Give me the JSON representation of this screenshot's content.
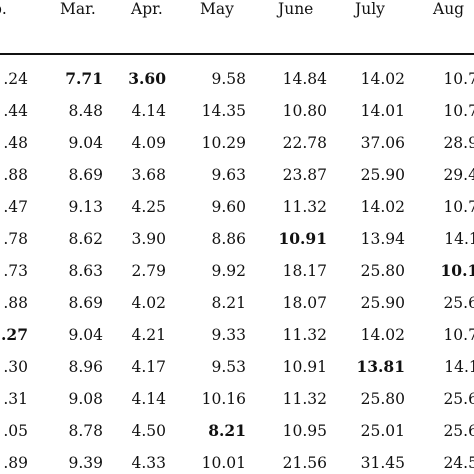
{
  "table": {
    "headers": [
      "b.",
      "Mar.",
      "Apr.",
      "May",
      "June",
      "July",
      "Aug"
    ],
    "rows": [
      [
        {
          "v": ".24"
        },
        {
          "v": "7.71",
          "b": true
        },
        {
          "v": "3.60",
          "b": true
        },
        {
          "v": "9.58"
        },
        {
          "v": "14.84"
        },
        {
          "v": "14.02"
        },
        {
          "v": "10.7("
        }
      ],
      [
        {
          "v": ".44"
        },
        {
          "v": "8.48"
        },
        {
          "v": "4.14"
        },
        {
          "v": "14.35"
        },
        {
          "v": "10.80"
        },
        {
          "v": "14.01"
        },
        {
          "v": "10.7("
        }
      ],
      [
        {
          "v": ".48"
        },
        {
          "v": "9.04"
        },
        {
          "v": "4.09"
        },
        {
          "v": "10.29"
        },
        {
          "v": "22.78"
        },
        {
          "v": "37.06"
        },
        {
          "v": "28.9("
        }
      ],
      [
        {
          "v": ".88"
        },
        {
          "v": "8.69"
        },
        {
          "v": "3.68"
        },
        {
          "v": "9.63"
        },
        {
          "v": "23.87"
        },
        {
          "v": "25.90"
        },
        {
          "v": "29.4("
        }
      ],
      [
        {
          "v": ".47"
        },
        {
          "v": "9.13"
        },
        {
          "v": "4.25"
        },
        {
          "v": "9.60"
        },
        {
          "v": "11.32"
        },
        {
          "v": "14.02"
        },
        {
          "v": "10.7("
        }
      ],
      [
        {
          "v": ".78"
        },
        {
          "v": "8.62"
        },
        {
          "v": "3.90"
        },
        {
          "v": "8.86"
        },
        {
          "v": "10.91",
          "b": true
        },
        {
          "v": "13.94"
        },
        {
          "v": "14.1:"
        }
      ],
      [
        {
          "v": ".73"
        },
        {
          "v": "8.63"
        },
        {
          "v": "2.79"
        },
        {
          "v": "9.92"
        },
        {
          "v": "18.17"
        },
        {
          "v": "25.80"
        },
        {
          "v": "10.1:",
          "b": true
        }
      ],
      [
        {
          "v": ".88"
        },
        {
          "v": "8.69"
        },
        {
          "v": "4.02"
        },
        {
          "v": "8.21"
        },
        {
          "v": "18.07"
        },
        {
          "v": "25.90"
        },
        {
          "v": "25.6("
        }
      ],
      [
        {
          "v": ".27",
          "b": true
        },
        {
          "v": "9.04"
        },
        {
          "v": "4.21"
        },
        {
          "v": "9.33"
        },
        {
          "v": "11.32"
        },
        {
          "v": "14.02"
        },
        {
          "v": "10.7("
        }
      ],
      [
        {
          "v": ".30"
        },
        {
          "v": "8.96"
        },
        {
          "v": "4.17"
        },
        {
          "v": "9.53"
        },
        {
          "v": "10.91"
        },
        {
          "v": "13.81",
          "b": true
        },
        {
          "v": "14.1:"
        }
      ],
      [
        {
          "v": ".31"
        },
        {
          "v": "9.08"
        },
        {
          "v": "4.14"
        },
        {
          "v": "10.16"
        },
        {
          "v": "11.32"
        },
        {
          "v": "25.80"
        },
        {
          "v": "25.6("
        }
      ],
      [
        {
          "v": ".05"
        },
        {
          "v": "8.78"
        },
        {
          "v": "4.50"
        },
        {
          "v": "8.21",
          "b": true
        },
        {
          "v": "10.95"
        },
        {
          "v": "25.01"
        },
        {
          "v": "25.6("
        }
      ],
      [
        {
          "v": ".89"
        },
        {
          "v": "9.39"
        },
        {
          "v": "4.33"
        },
        {
          "v": "10.01"
        },
        {
          "v": "21.56"
        },
        {
          "v": "31.45"
        },
        {
          "v": "24.5("
        }
      ]
    ]
  }
}
